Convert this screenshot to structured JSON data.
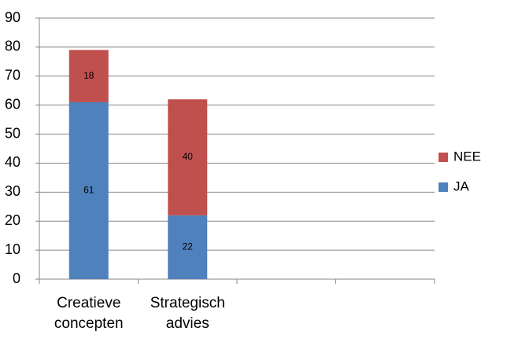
{
  "chart_data": {
    "type": "stacked-bar",
    "categories": [
      "Creatieve concepten",
      "Strategisch advies",
      null,
      null
    ],
    "series": [
      {
        "name": "JA",
        "color": "#4f81bd",
        "values": [
          61,
          22,
          null,
          null
        ]
      },
      {
        "name": "NEE",
        "color": "#c0504d",
        "values": [
          18,
          40,
          null,
          null
        ]
      }
    ],
    "ylim": [
      0,
      90
    ],
    "yticks": [
      0,
      10,
      20,
      30,
      40,
      50,
      60,
      70,
      80,
      90
    ],
    "grid": true,
    "legend": "right"
  }
}
